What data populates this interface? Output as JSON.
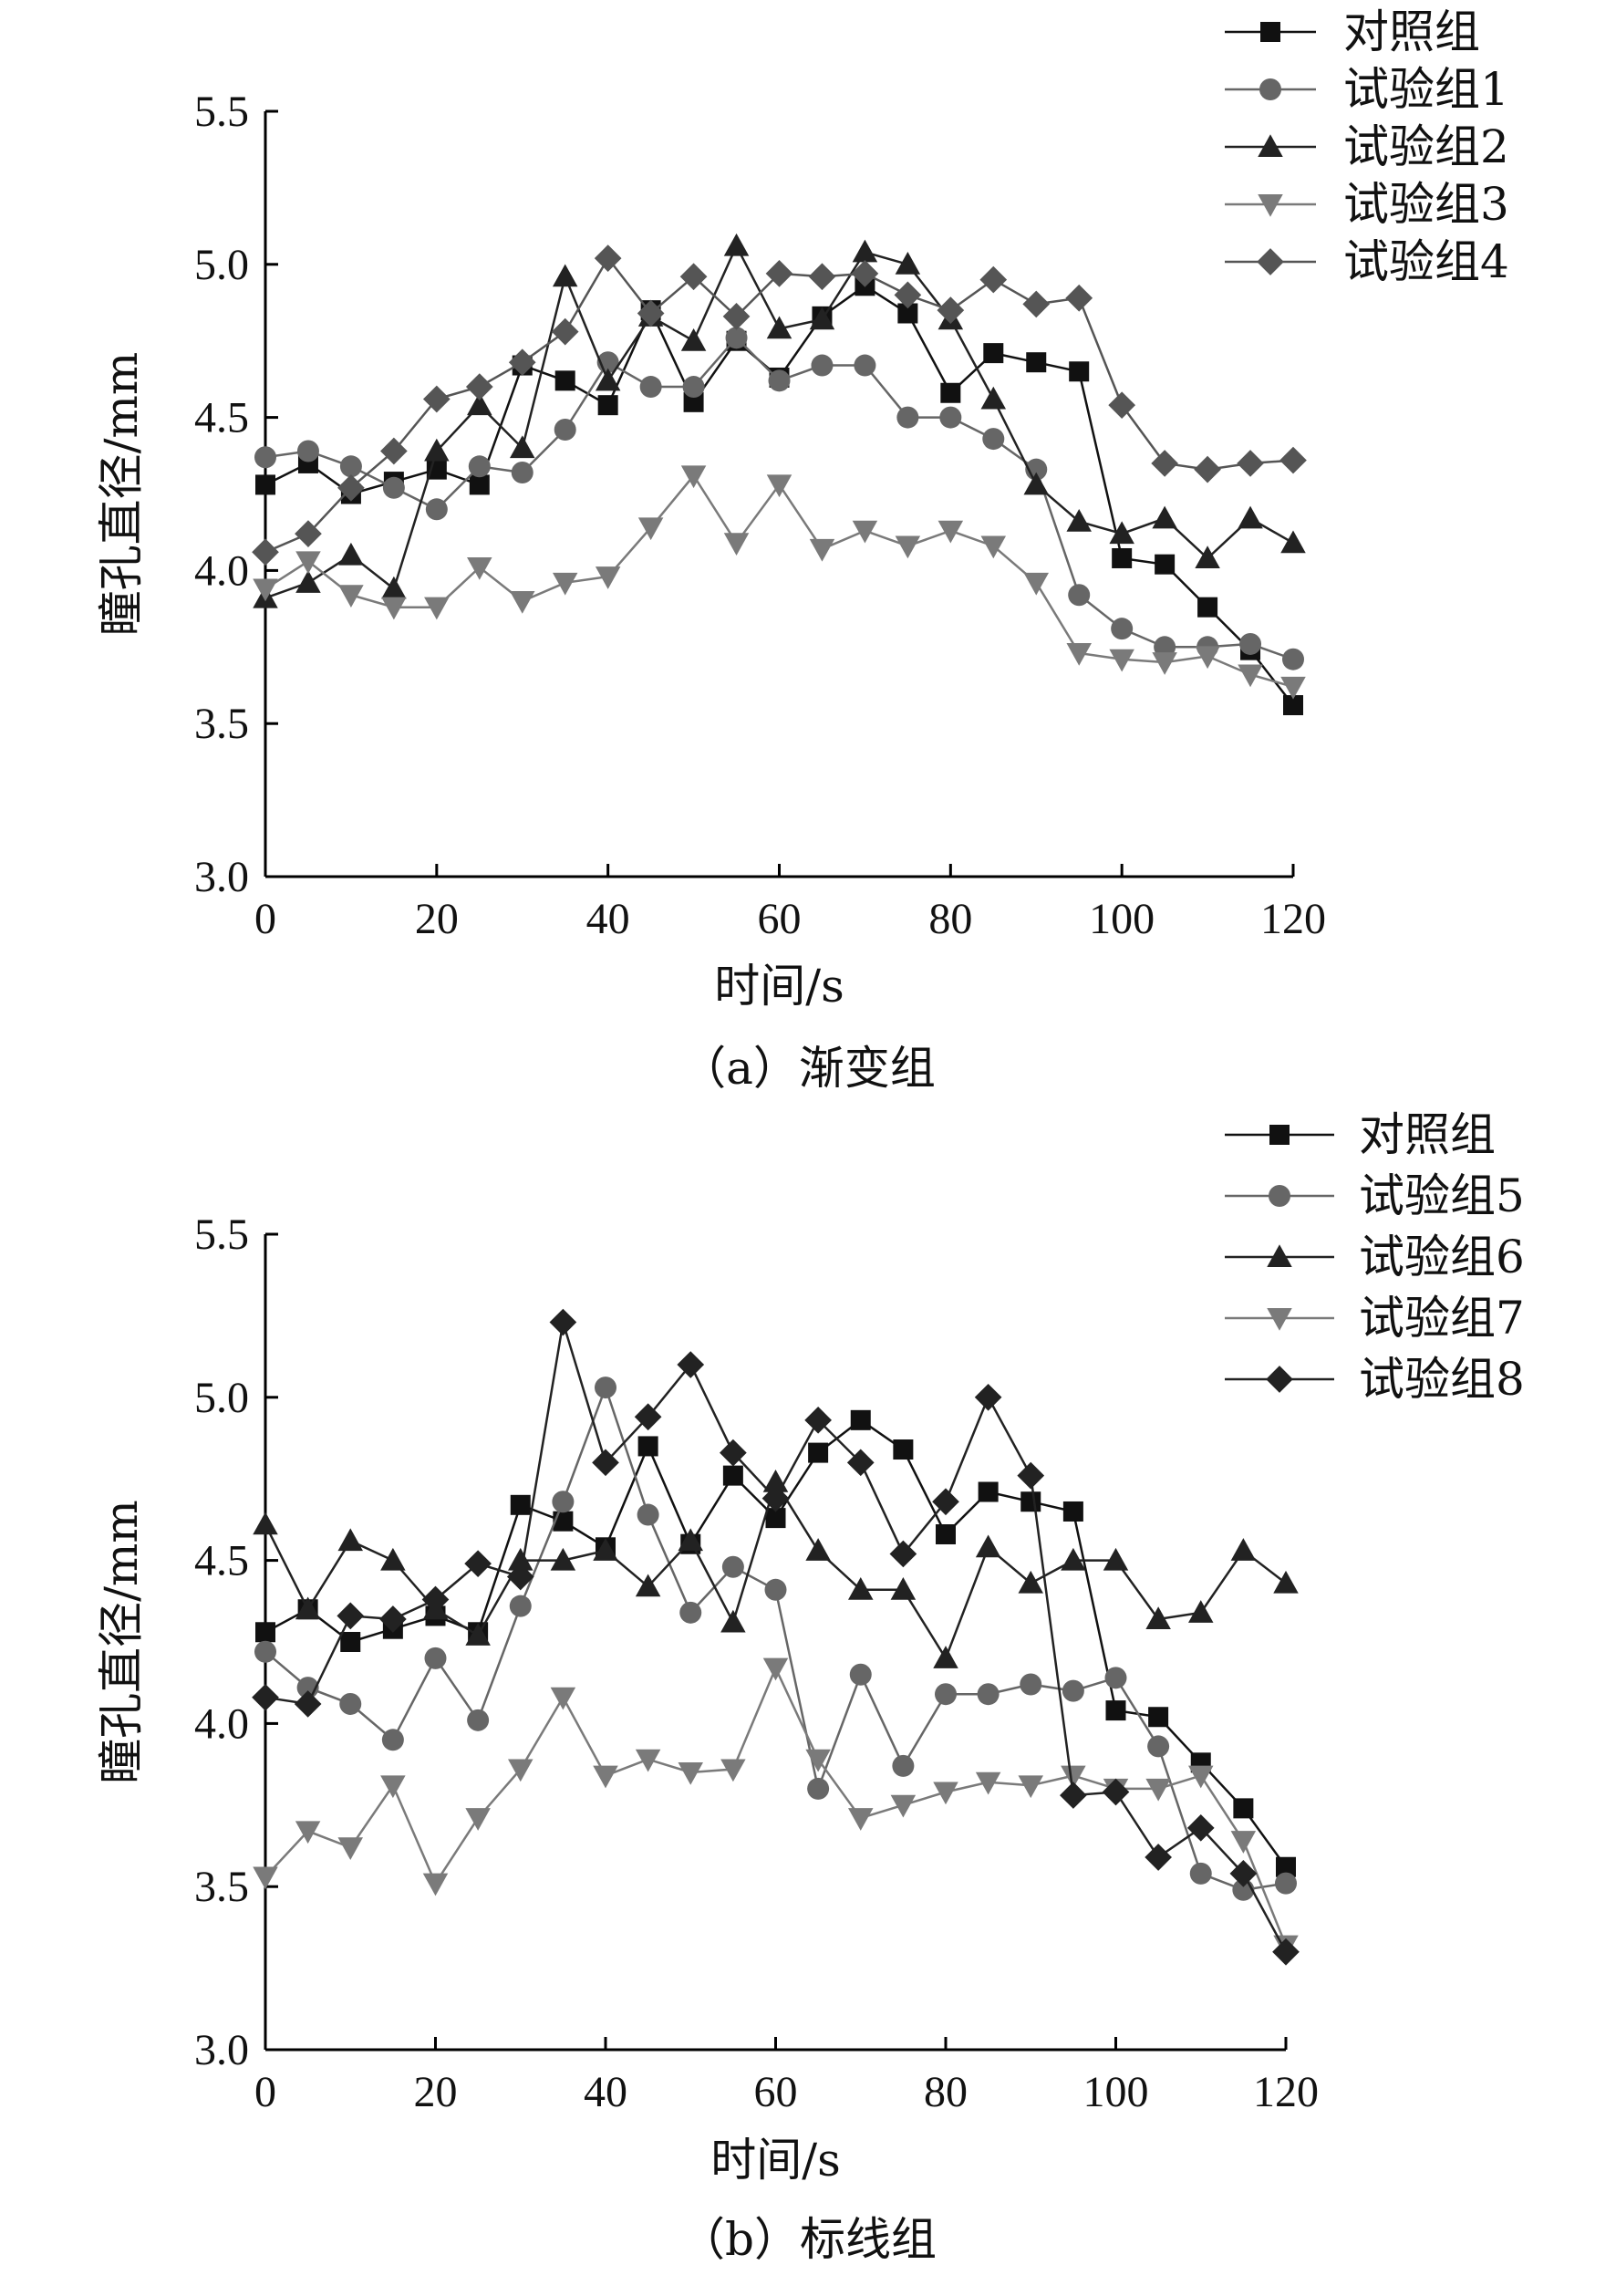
{
  "colors": {
    "dark": "#111111",
    "mid": "#555555",
    "light": "#7a7a7a",
    "axis": "#000000"
  },
  "chart_data": [
    {
      "type": "line",
      "caption": "（a）渐变组",
      "xlabel": "时间/s",
      "ylabel": "瞳孔直径/mm",
      "xlim": [
        0,
        120
      ],
      "ylim": [
        3.0,
        5.5
      ],
      "xticks": [
        0,
        20,
        40,
        60,
        80,
        100,
        120
      ],
      "yticks": [
        3.0,
        3.5,
        4.0,
        4.5,
        5.0,
        5.5
      ],
      "ytick_labels": [
        "3.0",
        "3.5",
        "4.0",
        "4.5",
        "5.0",
        "5.5"
      ],
      "legend_position": "top-right",
      "x": [
        0,
        5,
        10,
        15,
        20,
        25,
        30,
        35,
        40,
        45,
        50,
        55,
        60,
        65,
        70,
        75,
        80,
        85,
        90,
        95,
        100,
        105,
        110,
        115,
        120
      ],
      "series": [
        {
          "name": "对照组",
          "marker": "square",
          "color": "#111111",
          "values": [
            4.28,
            4.35,
            4.25,
            4.29,
            4.33,
            4.28,
            4.67,
            4.62,
            4.54,
            4.85,
            4.55,
            4.75,
            4.63,
            4.83,
            4.93,
            4.84,
            4.58,
            4.71,
            4.68,
            4.65,
            4.04,
            4.02,
            3.88,
            3.74,
            3.56
          ]
        },
        {
          "name": "试验组1",
          "marker": "circle",
          "color": "#666666",
          "values": [
            4.37,
            4.39,
            4.34,
            4.27,
            4.2,
            4.34,
            4.32,
            4.46,
            4.68,
            4.6,
            4.6,
            4.76,
            4.62,
            4.67,
            4.67,
            4.5,
            4.5,
            4.43,
            4.33,
            3.92,
            3.81,
            3.75,
            3.75,
            3.76,
            3.71
          ]
        },
        {
          "name": "试验组2",
          "marker": "triangle-up",
          "color": "#222222",
          "values": [
            3.91,
            3.96,
            4.05,
            3.94,
            4.39,
            4.54,
            4.4,
            4.96,
            4.62,
            4.83,
            4.75,
            5.06,
            4.79,
            4.82,
            5.04,
            5.0,
            4.82,
            4.56,
            4.28,
            4.16,
            4.12,
            4.17,
            4.04,
            4.17,
            4.09
          ]
        },
        {
          "name": "试验组3",
          "marker": "triangle-down",
          "color": "#7a7a7a",
          "values": [
            3.94,
            4.03,
            3.92,
            3.88,
            3.88,
            4.01,
            3.9,
            3.96,
            3.98,
            4.14,
            4.31,
            4.09,
            4.28,
            4.07,
            4.13,
            4.08,
            4.13,
            4.08,
            3.96,
            3.73,
            3.71,
            3.7,
            3.72,
            3.66,
            3.62
          ]
        },
        {
          "name": "试验组4",
          "marker": "diamond",
          "color": "#555555",
          "values": [
            4.06,
            4.12,
            4.27,
            4.39,
            4.56,
            4.6,
            4.68,
            4.78,
            5.02,
            4.84,
            4.96,
            4.83,
            4.97,
            4.96,
            4.97,
            4.9,
            4.85,
            4.95,
            4.87,
            4.89,
            4.54,
            4.35,
            4.33,
            4.35,
            4.36
          ]
        }
      ]
    },
    {
      "type": "line",
      "caption": "（b）标线组",
      "xlabel": "时间/s",
      "ylabel": "瞳孔直径/mm",
      "xlim": [
        0,
        120
      ],
      "ylim": [
        3.0,
        5.5
      ],
      "xticks": [
        0,
        20,
        40,
        60,
        80,
        100,
        120
      ],
      "yticks": [
        3.0,
        3.5,
        4.0,
        4.5,
        5.0,
        5.5
      ],
      "ytick_labels": [
        "3.0",
        "3.5",
        "4.0",
        "4.5",
        "5.0",
        "5.5"
      ],
      "legend_position": "top-right",
      "x": [
        0,
        5,
        10,
        15,
        20,
        25,
        30,
        35,
        40,
        45,
        50,
        55,
        60,
        65,
        70,
        75,
        80,
        85,
        90,
        95,
        100,
        105,
        110,
        115,
        120
      ],
      "series": [
        {
          "name": "对照组",
          "marker": "square",
          "color": "#111111",
          "values": [
            4.28,
            4.35,
            4.25,
            4.29,
            4.33,
            4.28,
            4.67,
            4.62,
            4.54,
            4.85,
            4.55,
            4.76,
            4.63,
            4.83,
            4.93,
            4.84,
            4.58,
            4.71,
            4.68,
            4.65,
            4.04,
            4.02,
            3.88,
            3.74,
            3.56
          ]
        },
        {
          "name": "试验组5",
          "marker": "circle",
          "color": "#666666",
          "values": [
            4.22,
            4.11,
            4.06,
            3.95,
            4.2,
            4.01,
            4.36,
            4.68,
            5.03,
            4.64,
            4.34,
            4.48,
            4.41,
            3.8,
            4.15,
            3.87,
            4.09,
            4.09,
            4.12,
            4.1,
            4.14,
            3.93,
            3.54,
            3.49,
            3.51
          ]
        },
        {
          "name": "试验组6",
          "marker": "triangle-up",
          "color": "#222222",
          "values": [
            4.61,
            4.35,
            4.56,
            4.5,
            4.35,
            4.27,
            4.5,
            4.5,
            4.53,
            4.42,
            4.56,
            4.31,
            4.74,
            4.53,
            4.41,
            4.41,
            4.2,
            4.54,
            4.43,
            4.5,
            4.5,
            4.32,
            4.34,
            4.53,
            4.43
          ]
        },
        {
          "name": "试验组7",
          "marker": "triangle-down",
          "color": "#7a7a7a",
          "values": [
            3.53,
            3.67,
            3.62,
            3.81,
            3.51,
            3.71,
            3.86,
            4.08,
            3.84,
            3.89,
            3.85,
            3.86,
            4.17,
            3.89,
            3.71,
            3.75,
            3.79,
            3.82,
            3.81,
            3.84,
            3.8,
            3.8,
            3.84,
            3.64,
            3.32
          ]
        },
        {
          "name": "试验组8",
          "marker": "diamond",
          "color": "#222222",
          "values": [
            4.08,
            4.06,
            4.33,
            4.32,
            4.38,
            4.49,
            4.45,
            5.23,
            4.8,
            4.94,
            5.1,
            4.83,
            4.69,
            4.93,
            4.8,
            4.52,
            4.68,
            5.0,
            4.76,
            3.78,
            3.79,
            3.59,
            3.68,
            3.54,
            3.3
          ]
        }
      ]
    }
  ]
}
